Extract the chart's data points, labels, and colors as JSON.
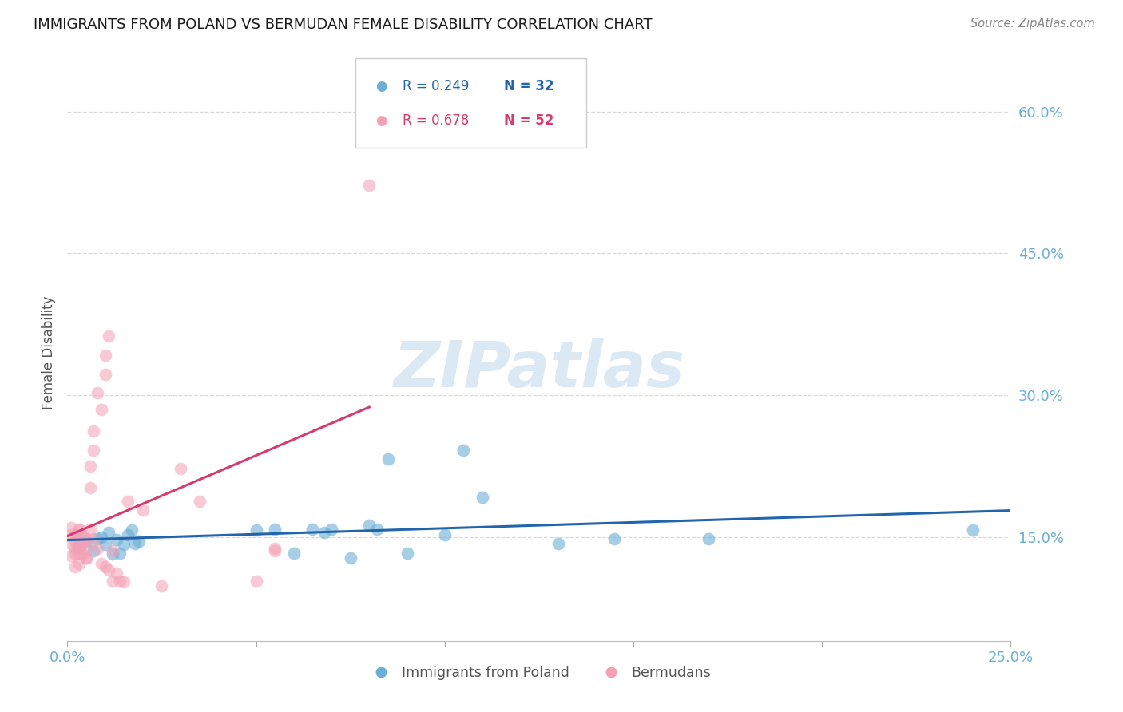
{
  "title": "IMMIGRANTS FROM POLAND VS BERMUDAN FEMALE DISABILITY CORRELATION CHART",
  "source": "Source: ZipAtlas.com",
  "ylabel": "Female Disability",
  "xlim": [
    0.0,
    0.25
  ],
  "ylim": [
    0.04,
    0.65
  ],
  "yticks": [
    0.15,
    0.3,
    0.45,
    0.6
  ],
  "xticks": [
    0.0,
    0.05,
    0.1,
    0.15,
    0.2,
    0.25
  ],
  "xtick_labels": [
    "0.0%",
    "",
    "",
    "",
    "",
    "25.0%"
  ],
  "ytick_labels": [
    "15.0%",
    "30.0%",
    "45.0%",
    "60.0%"
  ],
  "background_color": "#ffffff",
  "grid_color": "#d8d8d8",
  "legend1_label": "Immigrants from Poland",
  "legend2_label": "Bermudans",
  "color_blue": "#6baed6",
  "color_pink": "#f4a0b5",
  "line_color_blue": "#2166ac",
  "line_color_pink": "#d63b6e",
  "scatter_blue_x": [
    0.003,
    0.005,
    0.007,
    0.008,
    0.009,
    0.01,
    0.011,
    0.012,
    0.013,
    0.014,
    0.015,
    0.016,
    0.017,
    0.018,
    0.019,
    0.05,
    0.055,
    0.06,
    0.065,
    0.068,
    0.07,
    0.075,
    0.08,
    0.082,
    0.085,
    0.09,
    0.1,
    0.105,
    0.11,
    0.13,
    0.145,
    0.17,
    0.24
  ],
  "scatter_blue_y": [
    0.14,
    0.145,
    0.135,
    0.148,
    0.15,
    0.142,
    0.155,
    0.132,
    0.147,
    0.133,
    0.142,
    0.152,
    0.157,
    0.143,
    0.145,
    0.157,
    0.158,
    0.133,
    0.158,
    0.155,
    0.158,
    0.128,
    0.162,
    0.158,
    0.232,
    0.133,
    0.152,
    0.242,
    0.192,
    0.143,
    0.148,
    0.148,
    0.157
  ],
  "scatter_pink_x": [
    0.001,
    0.001,
    0.001,
    0.001,
    0.002,
    0.002,
    0.002,
    0.002,
    0.002,
    0.003,
    0.003,
    0.003,
    0.003,
    0.003,
    0.004,
    0.004,
    0.004,
    0.005,
    0.005,
    0.005,
    0.006,
    0.006,
    0.007,
    0.007,
    0.008,
    0.009,
    0.01,
    0.01,
    0.011,
    0.012,
    0.013,
    0.014,
    0.015,
    0.016,
    0.02,
    0.025,
    0.03,
    0.035,
    0.05,
    0.055,
    0.003,
    0.004,
    0.005,
    0.006,
    0.007,
    0.008,
    0.009,
    0.01,
    0.011,
    0.012,
    0.055,
    0.08
  ],
  "scatter_pink_y": [
    0.13,
    0.143,
    0.152,
    0.16,
    0.118,
    0.132,
    0.138,
    0.145,
    0.152,
    0.122,
    0.132,
    0.138,
    0.145,
    0.157,
    0.132,
    0.142,
    0.152,
    0.128,
    0.138,
    0.148,
    0.202,
    0.225,
    0.242,
    0.262,
    0.302,
    0.285,
    0.322,
    0.342,
    0.362,
    0.103,
    0.112,
    0.103,
    0.102,
    0.188,
    0.178,
    0.098,
    0.222,
    0.188,
    0.103,
    0.135,
    0.158,
    0.148,
    0.128,
    0.158,
    0.148,
    0.138,
    0.122,
    0.118,
    0.115,
    0.135,
    0.138,
    0.522
  ],
  "watermark_text": "ZIPatlas",
  "watermark_color": "#cde0f0",
  "watermark_alpha": 0.7,
  "watermark_fontsize": 58
}
